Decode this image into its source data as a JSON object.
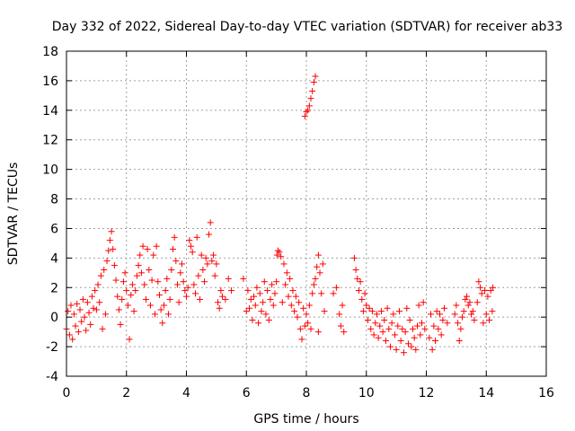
{
  "chart_data": {
    "type": "scatter",
    "title": "Day 332 of 2022, Sidereal Day-to-day VTEC variation (SDTVAR) for receiver ab33",
    "xlabel": "GPS time / hours",
    "ylabel": "SDTVAR / TECUs",
    "xlim": [
      0,
      16
    ],
    "ylim": [
      -4,
      18
    ],
    "xticks": [
      "0",
      "2",
      "4",
      "6",
      "8",
      "10",
      "12",
      "14",
      "16"
    ],
    "yticks": [
      "-4",
      "-2",
      "0",
      "2",
      "4",
      "6",
      "8",
      "10",
      "12",
      "14",
      "16",
      "18"
    ],
    "grid": true,
    "marker": "+",
    "color": "#ff0000",
    "series": [
      {
        "name": "SDTVAR",
        "points": [
          [
            0.0,
            -0.8
          ],
          [
            0.05,
            0.4
          ],
          [
            0.1,
            -1.2
          ],
          [
            0.15,
            0.8
          ],
          [
            0.2,
            -1.5
          ],
          [
            0.25,
            0.2
          ],
          [
            0.3,
            -0.6
          ],
          [
            0.35,
            0.9
          ],
          [
            0.4,
            -1.0
          ],
          [
            0.45,
            0.5
          ],
          [
            0.5,
            -0.3
          ],
          [
            0.55,
            1.2
          ],
          [
            0.6,
            0.0
          ],
          [
            0.65,
            -0.9
          ],
          [
            0.7,
            1.0
          ],
          [
            0.75,
            0.3
          ],
          [
            0.8,
            -0.5
          ],
          [
            0.85,
            1.4
          ],
          [
            0.9,
            0.6
          ],
          [
            0.95,
            1.8
          ],
          [
            1.0,
            0.5
          ],
          [
            1.05,
            2.2
          ],
          [
            1.1,
            1.0
          ],
          [
            1.15,
            2.8
          ],
          [
            1.2,
            -0.8
          ],
          [
            1.25,
            3.2
          ],
          [
            1.3,
            0.2
          ],
          [
            1.35,
            3.8
          ],
          [
            1.4,
            4.5
          ],
          [
            1.45,
            5.2
          ],
          [
            1.5,
            5.8
          ],
          [
            1.55,
            4.6
          ],
          [
            1.6,
            3.5
          ],
          [
            1.65,
            2.5
          ],
          [
            1.7,
            1.4
          ],
          [
            1.75,
            0.5
          ],
          [
            1.8,
            -0.5
          ],
          [
            1.85,
            1.2
          ],
          [
            1.9,
            2.4
          ],
          [
            1.95,
            3.0
          ],
          [
            2.0,
            1.8
          ],
          [
            2.05,
            0.8
          ],
          [
            2.1,
            -1.5
          ],
          [
            2.15,
            1.5
          ],
          [
            2.2,
            2.2
          ],
          [
            2.25,
            0.4
          ],
          [
            2.3,
            1.8
          ],
          [
            2.35,
            2.8
          ],
          [
            2.4,
            3.5
          ],
          [
            2.45,
            4.2
          ],
          [
            2.5,
            3.0
          ],
          [
            2.55,
            4.8
          ],
          [
            2.6,
            2.2
          ],
          [
            2.65,
            1.2
          ],
          [
            2.7,
            4.6
          ],
          [
            2.75,
            3.2
          ],
          [
            2.8,
            0.8
          ],
          [
            2.85,
            2.5
          ],
          [
            2.9,
            4.2
          ],
          [
            2.95,
            0.2
          ],
          [
            3.0,
            4.8
          ],
          [
            3.05,
            2.4
          ],
          [
            3.1,
            1.5
          ],
          [
            3.15,
            0.5
          ],
          [
            3.2,
            -0.4
          ],
          [
            3.25,
            0.8
          ],
          [
            3.3,
            1.8
          ],
          [
            3.35,
            2.6
          ],
          [
            3.4,
            0.2
          ],
          [
            3.45,
            1.2
          ],
          [
            3.5,
            3.2
          ],
          [
            3.55,
            4.6
          ],
          [
            3.6,
            5.4
          ],
          [
            3.65,
            3.8
          ],
          [
            3.7,
            2.2
          ],
          [
            3.75,
            1.0
          ],
          [
            3.8,
            3.0
          ],
          [
            3.85,
            3.6
          ],
          [
            3.9,
            2.4
          ],
          [
            3.95,
            1.8
          ],
          [
            4.0,
            1.4
          ],
          [
            4.05,
            2.0
          ],
          [
            4.1,
            5.2
          ],
          [
            4.15,
            4.8
          ],
          [
            4.2,
            4.4
          ],
          [
            4.25,
            2.2
          ],
          [
            4.3,
            1.6
          ],
          [
            4.35,
            5.4
          ],
          [
            4.4,
            2.8
          ],
          [
            4.45,
            1.2
          ],
          [
            4.5,
            4.2
          ],
          [
            4.55,
            3.2
          ],
          [
            4.6,
            2.4
          ],
          [
            4.65,
            4.0
          ],
          [
            4.7,
            3.6
          ],
          [
            4.75,
            5.6
          ],
          [
            4.8,
            6.4
          ],
          [
            4.85,
            3.8
          ],
          [
            4.9,
            4.2
          ],
          [
            4.95,
            2.8
          ],
          [
            5.0,
            3.6
          ],
          [
            5.05,
            1.0
          ],
          [
            5.1,
            0.6
          ],
          [
            5.15,
            1.8
          ],
          [
            5.2,
            1.4
          ],
          [
            5.3,
            1.2
          ],
          [
            5.4,
            2.6
          ],
          [
            5.5,
            1.8
          ],
          [
            5.9,
            2.6
          ],
          [
            6.0,
            0.4
          ],
          [
            6.05,
            1.8
          ],
          [
            6.1,
            0.6
          ],
          [
            6.15,
            1.2
          ],
          [
            6.2,
            -0.2
          ],
          [
            6.25,
            1.4
          ],
          [
            6.3,
            0.8
          ],
          [
            6.35,
            2.0
          ],
          [
            6.4,
            -0.4
          ],
          [
            6.45,
            1.6
          ],
          [
            6.5,
            0.4
          ],
          [
            6.55,
            1.0
          ],
          [
            6.6,
            2.4
          ],
          [
            6.65,
            0.2
          ],
          [
            6.7,
            1.8
          ],
          [
            6.75,
            -0.2
          ],
          [
            6.8,
            1.2
          ],
          [
            6.85,
            2.2
          ],
          [
            6.9,
            0.8
          ],
          [
            6.95,
            1.6
          ],
          [
            7.0,
            2.4
          ],
          [
            7.02,
            4.2
          ],
          [
            7.05,
            4.5
          ],
          [
            7.1,
            4.4
          ],
          [
            7.15,
            4.1
          ],
          [
            7.2,
            1.0
          ],
          [
            7.25,
            3.6
          ],
          [
            7.3,
            2.2
          ],
          [
            7.35,
            3.0
          ],
          [
            7.4,
            1.4
          ],
          [
            7.45,
            2.6
          ],
          [
            7.5,
            0.8
          ],
          [
            7.55,
            1.8
          ],
          [
            7.6,
            0.4
          ],
          [
            7.65,
            1.4
          ],
          [
            7.7,
            0.0
          ],
          [
            7.75,
            1.0
          ],
          [
            7.8,
            -0.8
          ],
          [
            7.85,
            -1.5
          ],
          [
            7.9,
            0.6
          ],
          [
            7.95,
            -0.6
          ],
          [
            8.0,
            0.2
          ],
          [
            8.05,
            -0.4
          ],
          [
            8.1,
            0.8
          ],
          [
            8.15,
            -0.8
          ],
          [
            8.2,
            1.6
          ],
          [
            8.25,
            2.2
          ],
          [
            8.3,
            2.6
          ],
          [
            8.35,
            3.4
          ],
          [
            8.4,
            4.2
          ],
          [
            8.45,
            3.0
          ],
          [
            8.5,
            1.6
          ],
          [
            8.55,
            3.6
          ],
          [
            8.4,
            -1.0
          ],
          [
            8.6,
            0.4
          ],
          [
            7.95,
            13.6
          ],
          [
            8.0,
            13.9
          ],
          [
            8.05,
            14.0
          ],
          [
            8.1,
            14.3
          ],
          [
            8.15,
            14.8
          ],
          [
            8.2,
            15.3
          ],
          [
            8.25,
            15.9
          ],
          [
            8.3,
            16.3
          ],
          [
            8.9,
            1.6
          ],
          [
            9.0,
            2.0
          ],
          [
            9.1,
            0.2
          ],
          [
            9.15,
            -0.6
          ],
          [
            9.2,
            0.8
          ],
          [
            9.25,
            -1.0
          ],
          [
            9.6,
            4.0
          ],
          [
            9.65,
            3.2
          ],
          [
            9.7,
            2.6
          ],
          [
            9.75,
            1.8
          ],
          [
            9.8,
            2.4
          ],
          [
            9.85,
            1.2
          ],
          [
            9.9,
            0.4
          ],
          [
            9.95,
            1.6
          ],
          [
            10.0,
            0.8
          ],
          [
            10.05,
            -0.2
          ],
          [
            10.1,
            0.6
          ],
          [
            10.15,
            -0.8
          ],
          [
            10.2,
            0.4
          ],
          [
            10.25,
            -1.2
          ],
          [
            10.3,
            -0.4
          ],
          [
            10.35,
            0.2
          ],
          [
            10.4,
            -1.4
          ],
          [
            10.45,
            -0.6
          ],
          [
            10.5,
            0.4
          ],
          [
            10.55,
            -1.0
          ],
          [
            10.6,
            -0.2
          ],
          [
            10.65,
            -1.6
          ],
          [
            10.7,
            0.6
          ],
          [
            10.75,
            -0.8
          ],
          [
            10.8,
            -2.0
          ],
          [
            10.85,
            -0.4
          ],
          [
            10.9,
            0.2
          ],
          [
            10.95,
            -1.2
          ],
          [
            11.0,
            -2.2
          ],
          [
            11.05,
            -0.6
          ],
          [
            11.1,
            0.4
          ],
          [
            11.15,
            -1.6
          ],
          [
            11.2,
            -0.8
          ],
          [
            11.25,
            -2.4
          ],
          [
            11.3,
            -1.0
          ],
          [
            11.35,
            0.6
          ],
          [
            11.4,
            -1.8
          ],
          [
            11.45,
            -0.2
          ],
          [
            11.5,
            -2.0
          ],
          [
            11.55,
            -0.8
          ],
          [
            11.6,
            -1.4
          ],
          [
            11.65,
            -2.2
          ],
          [
            11.7,
            -0.6
          ],
          [
            11.75,
            0.8
          ],
          [
            11.8,
            -1.2
          ],
          [
            11.85,
            -0.4
          ],
          [
            11.9,
            1.0
          ],
          [
            11.95,
            -0.8
          ],
          [
            12.1,
            -1.4
          ],
          [
            12.15,
            0.2
          ],
          [
            12.2,
            -2.2
          ],
          [
            12.25,
            -0.6
          ],
          [
            12.3,
            -1.6
          ],
          [
            12.35,
            0.4
          ],
          [
            12.4,
            -0.8
          ],
          [
            12.45,
            0.2
          ],
          [
            12.5,
            -1.2
          ],
          [
            12.55,
            -0.2
          ],
          [
            12.6,
            0.6
          ],
          [
            12.7,
            -0.4
          ],
          [
            12.95,
            0.2
          ],
          [
            13.0,
            0.8
          ],
          [
            13.05,
            -0.4
          ],
          [
            13.1,
            -1.6
          ],
          [
            13.15,
            -0.8
          ],
          [
            13.2,
            0.0
          ],
          [
            13.25,
            0.4
          ],
          [
            13.3,
            1.2
          ],
          [
            13.35,
            1.4
          ],
          [
            13.4,
            0.8
          ],
          [
            13.45,
            1.0
          ],
          [
            13.5,
            0.2
          ],
          [
            13.55,
            0.4
          ],
          [
            13.6,
            -0.2
          ],
          [
            13.7,
            1.0
          ],
          [
            13.75,
            2.4
          ],
          [
            13.8,
            2.0
          ],
          [
            13.85,
            1.6
          ],
          [
            13.9,
            -0.4
          ],
          [
            13.95,
            1.8
          ],
          [
            14.0,
            0.2
          ],
          [
            14.05,
            1.4
          ],
          [
            14.1,
            -0.2
          ],
          [
            14.15,
            1.8
          ],
          [
            14.2,
            0.4
          ],
          [
            14.22,
            2.0
          ]
        ]
      }
    ]
  }
}
